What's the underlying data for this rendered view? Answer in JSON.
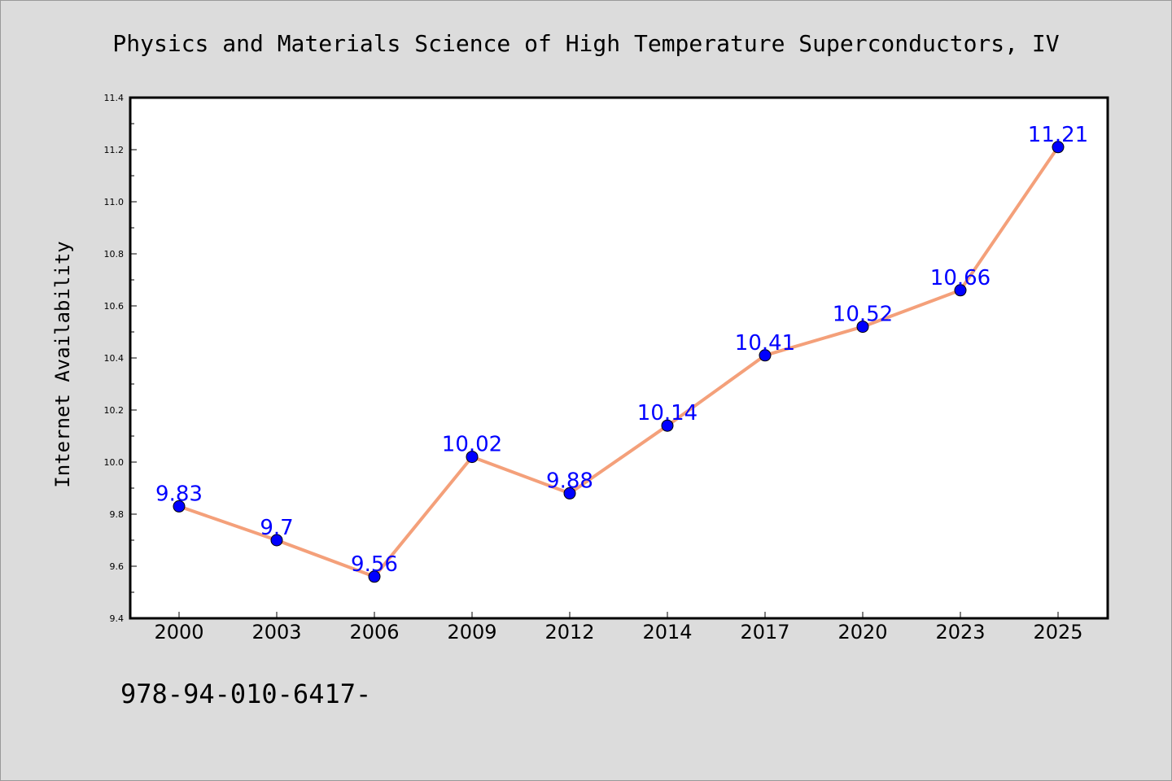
{
  "chart_data": {
    "type": "line",
    "title": "Physics and Materials Science of High Temperature Superconductors, IV",
    "xlabel": "",
    "ylabel": "Internet Availability",
    "categories": [
      "2000",
      "2003",
      "2006",
      "2009",
      "2012",
      "2014",
      "2017",
      "2020",
      "2023",
      "2025"
    ],
    "series": [
      {
        "values": [
          9.83,
          9.7,
          9.56,
          10.02,
          9.88,
          10.14,
          10.41,
          10.52,
          10.66,
          11.21
        ],
        "data_labels": [
          "9.83",
          "9.7",
          "9.56",
          "10.02",
          "9.88",
          "10.14",
          "10.41",
          "10.52",
          "10.66",
          "11.21"
        ],
        "line_color": "#f4a07a",
        "marker_color": "#0000ff"
      }
    ],
    "ylim": [
      9.4,
      11.4
    ],
    "yticks": [
      "9.4",
      "9.6",
      "9.8",
      "10.0",
      "10.2",
      "10.4",
      "10.6",
      "10.8",
      "11.0",
      "11.2",
      "11.4"
    ],
    "grid": false,
    "legend": "none"
  },
  "footer": {
    "isbn_text": "978-94-010-6417-"
  },
  "colors": {
    "background": "#dcdcdc",
    "plot_background": "#ffffff",
    "line": "#f4a07a",
    "marker": "#0000ff",
    "data_label": "#0000ff"
  }
}
